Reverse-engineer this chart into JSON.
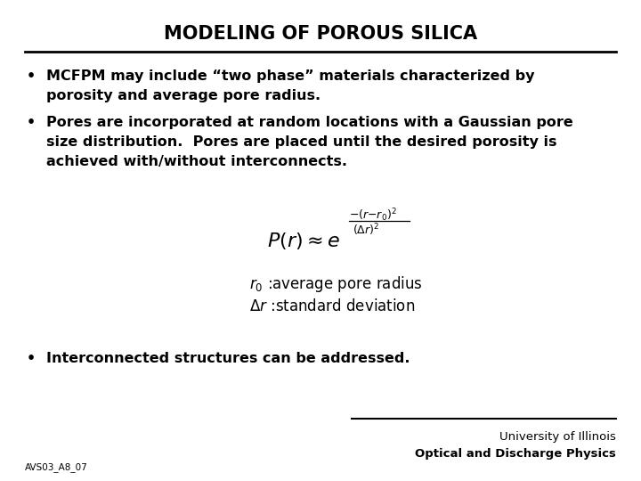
{
  "title": "MODELING OF POROUS SILICA",
  "background_color": "#ffffff",
  "text_color": "#000000",
  "bullet1_line1": "MCFPM may include “two phase” materials characterized by",
  "bullet1_line2": "porosity and average pore radius.",
  "bullet2_line1": "Pores are incorporated at random locations with a Gaussian pore",
  "bullet2_line2": "size distribution.  Pores are placed until the desired porosity is",
  "bullet2_line3": "achieved with/without interconnects.",
  "bullet3": "Interconnected structures can be addressed.",
  "footer_left": "AVS03_A8_07",
  "footer_right1": "University of Illinois",
  "footer_right2": "Optical and Discharge Physics",
  "title_fontsize": 15,
  "bullet_fontsize": 11.5,
  "footer_fontsize": 9.5
}
